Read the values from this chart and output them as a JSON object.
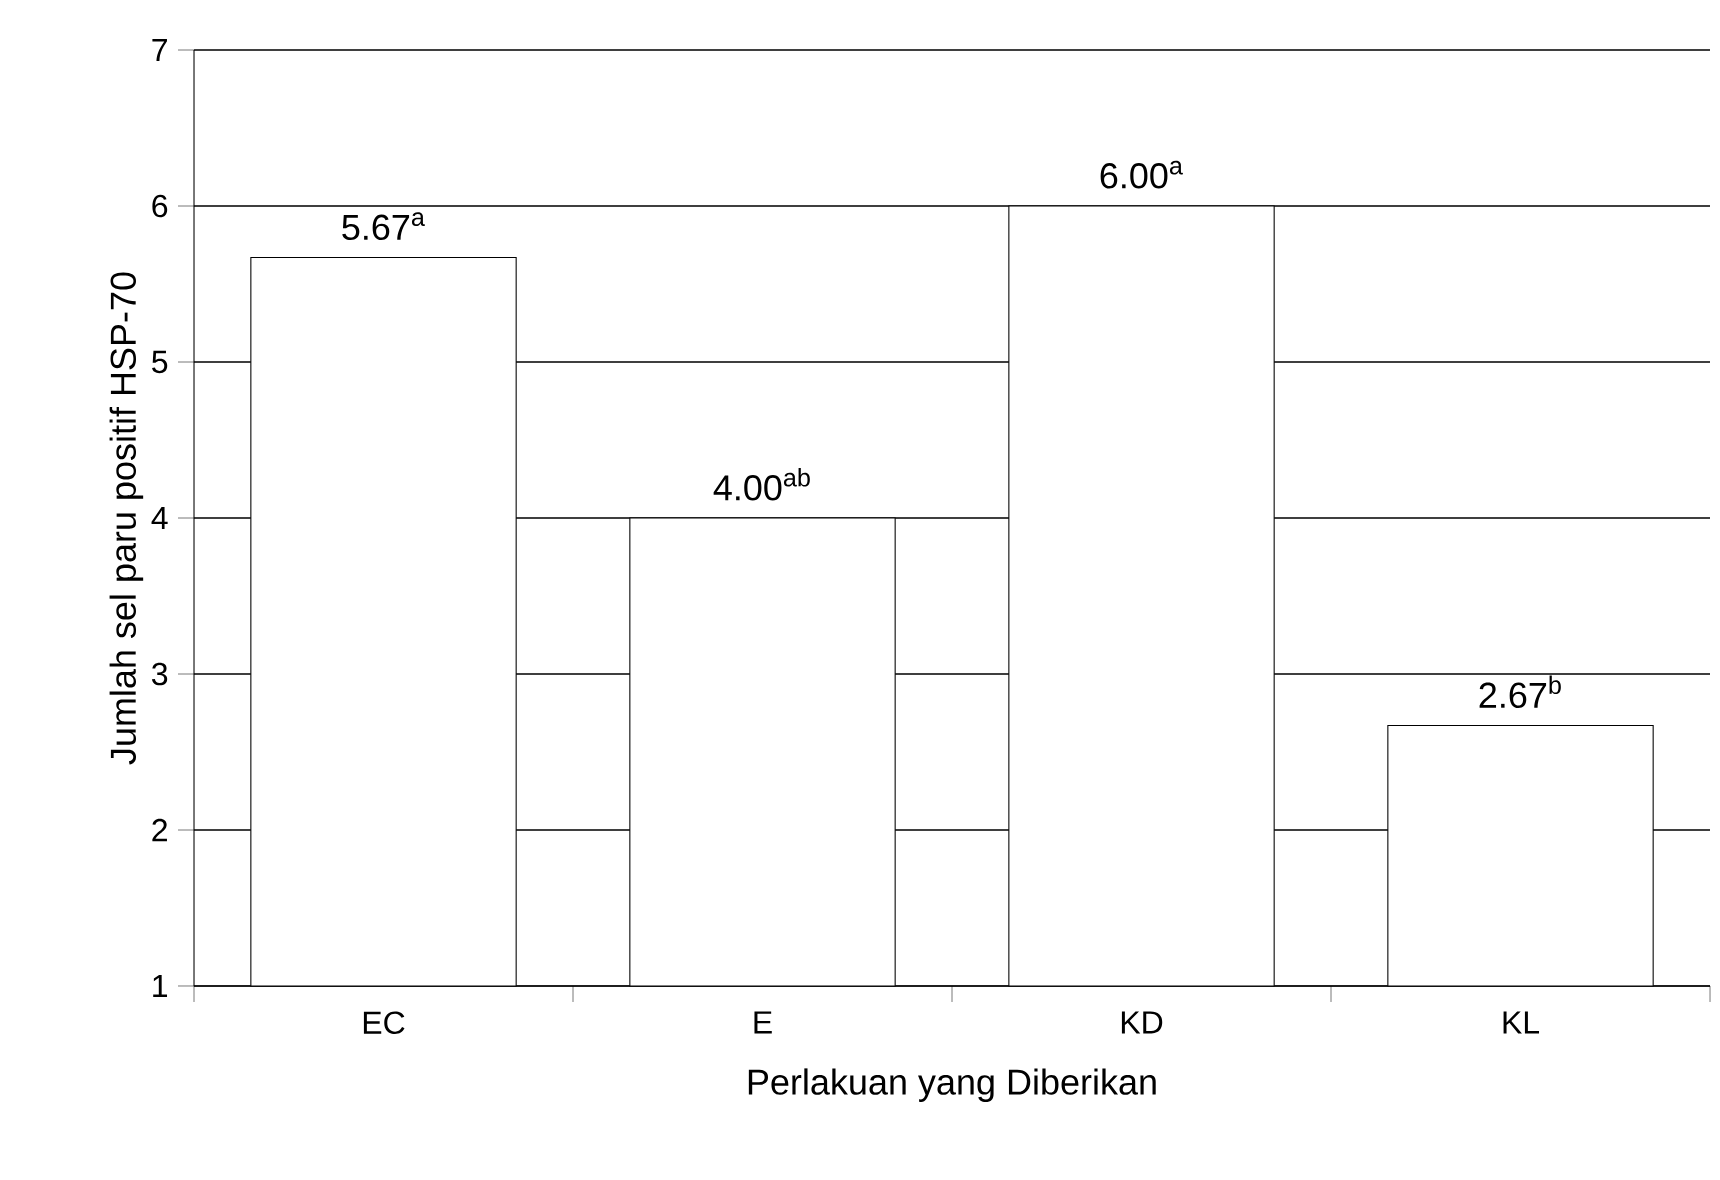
{
  "chart_data": {
    "type": "bar",
    "xlabel": "Perlakuan yang Diberikan",
    "ylabel": "Jumlah sel paru positif HSP-70",
    "categories": [
      "EC",
      "E",
      "KD",
      "KL"
    ],
    "values": [
      5.67,
      4.0,
      6.0,
      2.67
    ],
    "value_labels": [
      "5.67$^{a}$",
      "4.00$^{ab}$",
      "6.00$^{a}$",
      "2.67$^{b}$"
    ],
    "colors": [
      "#ffffff",
      "#ffffff",
      "#ffffff",
      "#ffffff"
    ],
    "ylim": [
      1,
      7
    ],
    "yticks": [
      1,
      2,
      3,
      4,
      5,
      6,
      7
    ],
    "grid": "y"
  }
}
